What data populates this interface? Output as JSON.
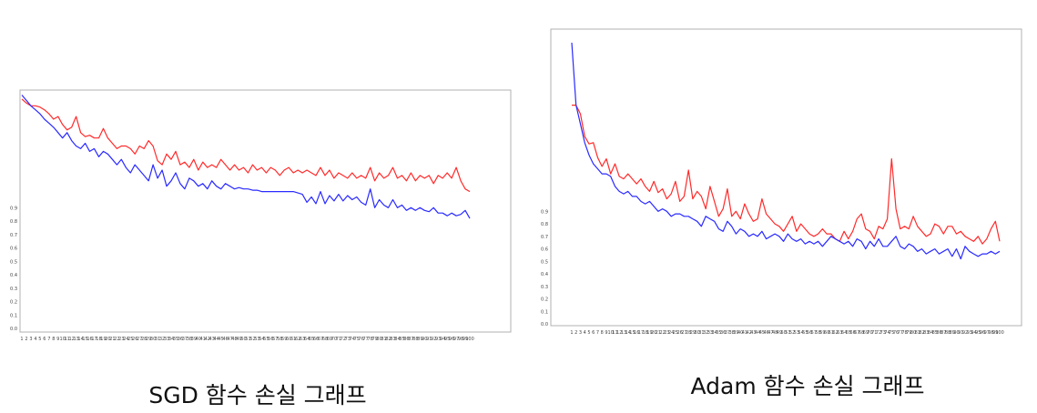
{
  "captions": {
    "sgd": "SGD 함수 손실 그래프",
    "adam": "Adam 함수 손실 그래프"
  },
  "colors": {
    "train": "#ff2a2a",
    "validation": "#2a2aff",
    "frame": "#b0b0b0"
  },
  "chart_data": [
    {
      "type": "line",
      "title": "",
      "xlabel": "",
      "ylabel": "",
      "ylim": [
        0.0,
        1.75
      ],
      "y_ticks": [
        0.0,
        0.1,
        0.2,
        0.3,
        0.4,
        0.5,
        0.6,
        0.7,
        0.8,
        0.9
      ],
      "x_range": [
        1,
        100
      ],
      "grid": false,
      "series": [
        {
          "color": "#ff2a2a",
          "values": [
            1.71,
            1.68,
            1.66,
            1.66,
            1.65,
            1.63,
            1.6,
            1.56,
            1.58,
            1.52,
            1.48,
            1.5,
            1.58,
            1.46,
            1.43,
            1.44,
            1.42,
            1.42,
            1.49,
            1.42,
            1.38,
            1.34,
            1.36,
            1.36,
            1.34,
            1.3,
            1.36,
            1.34,
            1.4,
            1.36,
            1.25,
            1.22,
            1.3,
            1.26,
            1.32,
            1.22,
            1.24,
            1.2,
            1.26,
            1.18,
            1.24,
            1.2,
            1.22,
            1.2,
            1.26,
            1.22,
            1.18,
            1.22,
            1.18,
            1.2,
            1.16,
            1.22,
            1.18,
            1.2,
            1.16,
            1.2,
            1.18,
            1.14,
            1.18,
            1.2,
            1.16,
            1.18,
            1.16,
            1.18,
            1.16,
            1.14,
            1.2,
            1.14,
            1.18,
            1.12,
            1.16,
            1.14,
            1.12,
            1.16,
            1.12,
            1.14,
            1.12,
            1.2,
            1.1,
            1.16,
            1.12,
            1.14,
            1.2,
            1.12,
            1.14,
            1.1,
            1.16,
            1.1,
            1.14,
            1.12,
            1.14,
            1.08,
            1.14,
            1.12,
            1.16,
            1.12,
            1.2,
            1.1,
            1.04,
            1.02
          ]
        },
        {
          "color": "#2a2aff",
          "values": [
            1.74,
            1.7,
            1.66,
            1.63,
            1.6,
            1.56,
            1.53,
            1.5,
            1.46,
            1.42,
            1.46,
            1.4,
            1.36,
            1.34,
            1.38,
            1.32,
            1.34,
            1.28,
            1.32,
            1.3,
            1.26,
            1.22,
            1.26,
            1.2,
            1.16,
            1.22,
            1.18,
            1.14,
            1.1,
            1.22,
            1.12,
            1.18,
            1.06,
            1.1,
            1.16,
            1.08,
            1.04,
            1.12,
            1.1,
            1.06,
            1.08,
            1.04,
            1.1,
            1.06,
            1.04,
            1.08,
            1.06,
            1.04,
            1.05,
            1.04,
            1.04,
            1.03,
            1.03,
            1.02,
            1.02,
            1.02,
            1.02,
            1.02,
            1.02,
            1.02,
            1.02,
            1.01,
            1.0,
            0.94,
            0.98,
            0.93,
            1.02,
            0.93,
            0.99,
            0.95,
            1.0,
            0.95,
            0.99,
            0.96,
            0.98,
            0.94,
            0.92,
            1.04,
            0.9,
            0.96,
            0.92,
            0.9,
            0.96,
            0.9,
            0.92,
            0.88,
            0.9,
            0.88,
            0.9,
            0.88,
            0.87,
            0.9,
            0.86,
            0.86,
            0.84,
            0.86,
            0.84,
            0.85,
            0.88,
            0.82
          ]
        }
      ]
    },
    {
      "type": "line",
      "title": "",
      "xlabel": "",
      "ylabel": "",
      "ylim": [
        0.0,
        2.3
      ],
      "y_ticks": [
        0.0,
        0.1,
        0.2,
        0.3,
        0.4,
        0.5,
        0.6,
        0.7,
        0.8,
        0.9
      ],
      "x_range": [
        1,
        100
      ],
      "grid": false,
      "series": [
        {
          "color": "#ff2a2a",
          "values": [
            1.75,
            1.75,
            1.68,
            1.5,
            1.44,
            1.45,
            1.33,
            1.26,
            1.32,
            1.2,
            1.28,
            1.18,
            1.16,
            1.2,
            1.16,
            1.12,
            1.16,
            1.1,
            1.06,
            1.14,
            1.05,
            1.08,
            1.0,
            1.04,
            1.14,
            0.98,
            1.02,
            1.23,
            1.0,
            1.06,
            1.02,
            0.92,
            1.1,
            0.98,
            0.86,
            0.92,
            1.08,
            0.86,
            0.9,
            0.84,
            0.96,
            0.88,
            0.82,
            0.84,
            1.0,
            0.88,
            0.84,
            0.8,
            0.78,
            0.74,
            0.8,
            0.86,
            0.74,
            0.8,
            0.76,
            0.72,
            0.7,
            0.72,
            0.76,
            0.72,
            0.72,
            0.68,
            0.66,
            0.74,
            0.68,
            0.74,
            0.84,
            0.88,
            0.76,
            0.74,
            0.68,
            0.78,
            0.76,
            0.84,
            1.32,
            0.92,
            0.76,
            0.78,
            0.76,
            0.86,
            0.78,
            0.74,
            0.7,
            0.72,
            0.8,
            0.78,
            0.72,
            0.78,
            0.78,
            0.72,
            0.74,
            0.7,
            0.68,
            0.66,
            0.7,
            0.64,
            0.68,
            0.76,
            0.82,
            0.66
          ]
        },
        {
          "color": "#2a2aff",
          "values": [
            2.25,
            1.75,
            1.6,
            1.45,
            1.35,
            1.28,
            1.24,
            1.2,
            1.2,
            1.18,
            1.1,
            1.06,
            1.04,
            1.06,
            1.02,
            1.02,
            0.98,
            0.96,
            0.98,
            0.94,
            0.9,
            0.92,
            0.9,
            0.86,
            0.88,
            0.88,
            0.86,
            0.86,
            0.84,
            0.82,
            0.78,
            0.86,
            0.84,
            0.82,
            0.76,
            0.74,
            0.82,
            0.78,
            0.72,
            0.76,
            0.74,
            0.7,
            0.72,
            0.7,
            0.74,
            0.68,
            0.7,
            0.72,
            0.7,
            0.66,
            0.72,
            0.68,
            0.66,
            0.68,
            0.64,
            0.66,
            0.64,
            0.66,
            0.62,
            0.66,
            0.7,
            0.68,
            0.66,
            0.64,
            0.66,
            0.62,
            0.68,
            0.66,
            0.6,
            0.66,
            0.62,
            0.68,
            0.62,
            0.62,
            0.66,
            0.7,
            0.62,
            0.6,
            0.64,
            0.62,
            0.58,
            0.6,
            0.56,
            0.58,
            0.6,
            0.56,
            0.58,
            0.6,
            0.54,
            0.6,
            0.52,
            0.62,
            0.58,
            0.56,
            0.54,
            0.56,
            0.56,
            0.58,
            0.56,
            0.58
          ]
        }
      ]
    }
  ]
}
